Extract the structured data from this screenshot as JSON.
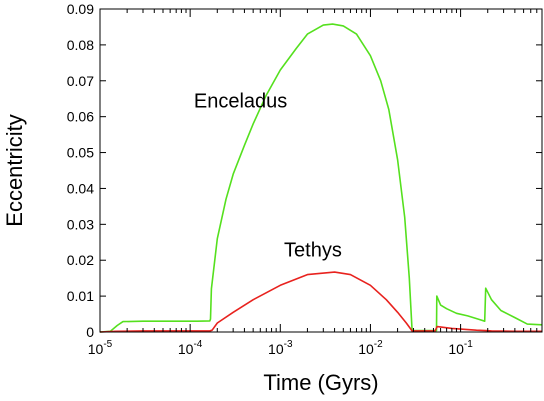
{
  "chart_data": {
    "type": "line",
    "title": "",
    "xlabel": "Time (Gyrs)",
    "ylabel": "Eccentricity",
    "x_scale": "log",
    "xlim": [
      1e-05,
      0.8
    ],
    "ylim": [
      0,
      0.09
    ],
    "grid": false,
    "x_ticks": [
      {
        "value": 1e-05,
        "base": "10",
        "exp": "-5"
      },
      {
        "value": 0.0001,
        "base": "10",
        "exp": "-4"
      },
      {
        "value": 0.001,
        "base": "10",
        "exp": "-3"
      },
      {
        "value": 0.01,
        "base": "10",
        "exp": "-2"
      },
      {
        "value": 0.1,
        "base": "10",
        "exp": "-1"
      }
    ],
    "y_ticks": [
      {
        "value": 0,
        "label": "0"
      },
      {
        "value": 0.01,
        "label": "0.01"
      },
      {
        "value": 0.02,
        "label": "0.02"
      },
      {
        "value": 0.03,
        "label": "0.03"
      },
      {
        "value": 0.04,
        "label": "0.04"
      },
      {
        "value": 0.05,
        "label": "0.05"
      },
      {
        "value": 0.06,
        "label": "0.06"
      },
      {
        "value": 0.07,
        "label": "0.07"
      },
      {
        "value": 0.08,
        "label": "0.08"
      },
      {
        "value": 0.09,
        "label": "0.09"
      }
    ],
    "annotations": [
      {
        "text": "Enceladus",
        "x": 0.00011,
        "y": 0.0625
      },
      {
        "text": "Tethys",
        "x": 0.0011,
        "y": 0.021
      }
    ],
    "series": [
      {
        "color": "#55e01e",
        "points": [
          [
            1e-05,
            0.0
          ],
          [
            1.3e-05,
            0.0002
          ],
          [
            1.55e-05,
            0.0018
          ],
          [
            1.8e-05,
            0.0029
          ],
          [
            3e-05,
            0.003
          ],
          [
            6e-05,
            0.003
          ],
          [
            0.00012,
            0.003
          ],
          [
            0.000165,
            0.0031
          ],
          [
            0.000168,
            0.0036
          ],
          [
            0.000172,
            0.012
          ],
          [
            0.0002,
            0.026
          ],
          [
            0.00025,
            0.037
          ],
          [
            0.0003,
            0.044
          ],
          [
            0.0004,
            0.052
          ],
          [
            0.0005,
            0.058
          ],
          [
            0.0007,
            0.066
          ],
          [
            0.001,
            0.073
          ],
          [
            0.0015,
            0.079
          ],
          [
            0.002,
            0.083
          ],
          [
            0.003,
            0.0855
          ],
          [
            0.0038,
            0.0858
          ],
          [
            0.005,
            0.0853
          ],
          [
            0.007,
            0.083
          ],
          [
            0.01,
            0.077
          ],
          [
            0.013,
            0.07
          ],
          [
            0.016,
            0.062
          ],
          [
            0.02,
            0.048
          ],
          [
            0.024,
            0.032
          ],
          [
            0.027,
            0.015
          ],
          [
            0.0285,
            0.004
          ],
          [
            0.029,
            0.0004
          ],
          [
            0.05,
            0.0004
          ],
          [
            0.054,
            0.0004
          ],
          [
            0.0545,
            0.01
          ],
          [
            0.06,
            0.0075
          ],
          [
            0.07,
            0.0065
          ],
          [
            0.09,
            0.0052
          ],
          [
            0.12,
            0.0045
          ],
          [
            0.16,
            0.0035
          ],
          [
            0.185,
            0.003
          ],
          [
            0.19,
            0.0122
          ],
          [
            0.22,
            0.009
          ],
          [
            0.28,
            0.006
          ],
          [
            0.4,
            0.004
          ],
          [
            0.55,
            0.0022
          ],
          [
            0.8,
            0.002
          ]
        ]
      },
      {
        "color": "#e8221e",
        "points": [
          [
            1e-05,
            0.0
          ],
          [
            1.5e-05,
            0.0002
          ],
          [
            3e-05,
            0.0003
          ],
          [
            8e-05,
            0.0003
          ],
          [
            0.000165,
            0.0003
          ],
          [
            0.000175,
            0.0005
          ],
          [
            0.0002,
            0.0025
          ],
          [
            0.0003,
            0.0055
          ],
          [
            0.0005,
            0.009
          ],
          [
            0.001,
            0.013
          ],
          [
            0.002,
            0.016
          ],
          [
            0.004,
            0.0167
          ],
          [
            0.006,
            0.016
          ],
          [
            0.01,
            0.013
          ],
          [
            0.015,
            0.009
          ],
          [
            0.02,
            0.0055
          ],
          [
            0.025,
            0.0025
          ],
          [
            0.029,
            0.0003
          ],
          [
            0.052,
            0.0003
          ],
          [
            0.055,
            0.0015
          ],
          [
            0.08,
            0.001
          ],
          [
            0.15,
            0.0005
          ],
          [
            0.19,
            0.0004
          ],
          [
            0.22,
            0.0003
          ],
          [
            0.4,
            0.0002
          ],
          [
            0.8,
            0.0002
          ]
        ]
      }
    ]
  }
}
